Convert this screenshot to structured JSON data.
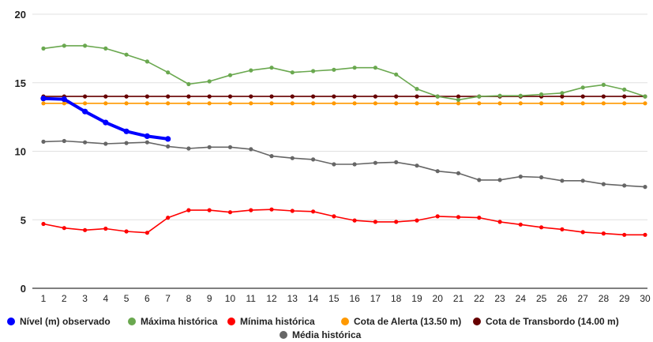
{
  "chart_data": {
    "type": "line",
    "x": [
      1,
      2,
      3,
      4,
      5,
      6,
      7,
      8,
      9,
      10,
      11,
      12,
      13,
      14,
      15,
      16,
      17,
      18,
      19,
      20,
      21,
      22,
      23,
      24,
      25,
      26,
      27,
      28,
      29,
      30
    ],
    "ylim": [
      0,
      20
    ],
    "yticks": [
      0,
      5,
      10,
      15,
      20
    ],
    "grid": true,
    "legend_position": "bottom",
    "series": [
      {
        "name": "Nível (m) observado",
        "color": "#0000ff",
        "values": [
          13.85,
          13.8,
          12.9,
          12.1,
          11.45,
          11.1,
          10.9,
          null,
          null,
          null,
          null,
          null,
          null,
          null,
          null,
          null,
          null,
          null,
          null,
          null,
          null,
          null,
          null,
          null,
          null,
          null,
          null,
          null,
          null,
          null
        ]
      },
      {
        "name": "Máxima histórica",
        "color": "#6aa84f",
        "values": [
          17.5,
          17.7,
          17.7,
          17.5,
          17.05,
          16.55,
          15.75,
          14.9,
          15.1,
          15.55,
          15.9,
          16.1,
          15.75,
          15.85,
          15.95,
          16.1,
          16.1,
          15.6,
          14.55,
          14.0,
          13.75,
          14.0,
          14.05,
          14.05,
          14.15,
          14.25,
          14.65,
          14.85,
          14.5,
          14.0
        ]
      },
      {
        "name": "Mínima histórica",
        "color": "#ff0000",
        "values": [
          4.7,
          4.4,
          4.25,
          4.35,
          4.15,
          4.05,
          5.15,
          5.7,
          5.7,
          5.55,
          5.7,
          5.75,
          5.65,
          5.6,
          5.25,
          4.95,
          4.85,
          4.85,
          4.95,
          5.25,
          5.2,
          5.15,
          4.85,
          4.65,
          4.45,
          4.3,
          4.1,
          4.0,
          3.9,
          3.9
        ]
      },
      {
        "name": "Cota de Alerta (13.50 m)",
        "color": "#ff9900",
        "values": [
          13.5,
          13.5,
          13.5,
          13.5,
          13.5,
          13.5,
          13.5,
          13.5,
          13.5,
          13.5,
          13.5,
          13.5,
          13.5,
          13.5,
          13.5,
          13.5,
          13.5,
          13.5,
          13.5,
          13.5,
          13.5,
          13.5,
          13.5,
          13.5,
          13.5,
          13.5,
          13.5,
          13.5,
          13.5,
          13.5
        ]
      },
      {
        "name": "Cota de Transbordo (14.00 m)",
        "color": "#660000",
        "values": [
          14.0,
          14.0,
          14.0,
          14.0,
          14.0,
          14.0,
          14.0,
          14.0,
          14.0,
          14.0,
          14.0,
          14.0,
          14.0,
          14.0,
          14.0,
          14.0,
          14.0,
          14.0,
          14.0,
          14.0,
          14.0,
          14.0,
          14.0,
          14.0,
          14.0,
          14.0,
          14.0,
          14.0,
          14.0,
          14.0
        ]
      },
      {
        "name": "Média histórica",
        "color": "#666666",
        "values": [
          10.7,
          10.75,
          10.65,
          10.55,
          10.6,
          10.65,
          10.35,
          10.2,
          10.3,
          10.3,
          10.15,
          9.65,
          9.5,
          9.4,
          9.05,
          9.05,
          9.15,
          9.2,
          8.95,
          8.55,
          8.4,
          7.9,
          7.9,
          8.15,
          8.1,
          7.85,
          7.85,
          7.6,
          7.5,
          7.4
        ]
      }
    ]
  }
}
